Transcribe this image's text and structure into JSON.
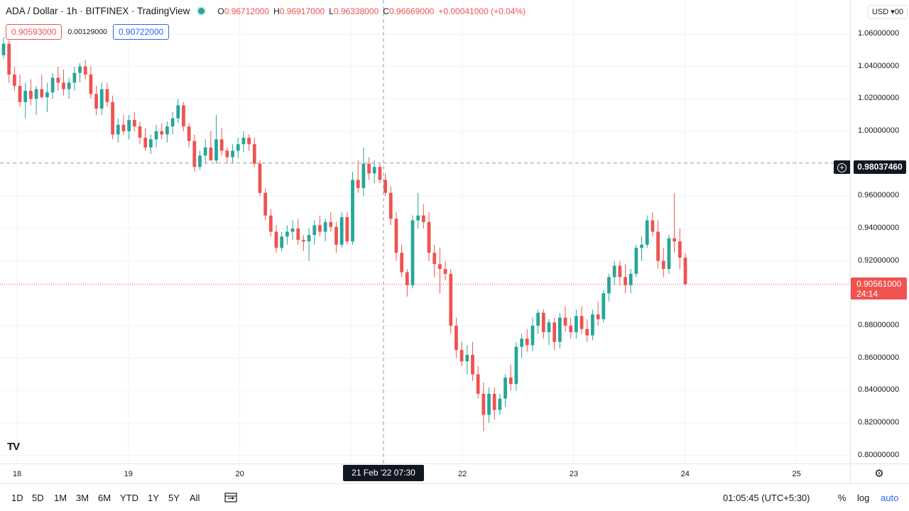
{
  "legend": {
    "symbol": "ADA / Dollar · 1h · BITFINEX · TradingView",
    "open_key": "O",
    "open": "0.96712000",
    "high_key": "H",
    "high": "0.96917000",
    "low_key": "L",
    "low": "0.96338000",
    "close_key": "C",
    "close": "0.96669000",
    "change": "+0.00041000 (+0.04%)"
  },
  "quote": {
    "bid": "0.90593000",
    "spread": "0.00129000",
    "ask": "0.90722000"
  },
  "currency": {
    "label": "USD ▾",
    "suffix": "00"
  },
  "price_axis": {
    "ticks": [
      "1.06000000",
      "1.04000000",
      "1.02000000",
      "1.00000000",
      "0.96000000",
      "0.94000000",
      "0.92000000",
      "0.88000000",
      "0.86000000",
      "0.84000000",
      "0.82000000",
      "0.80000000"
    ],
    "tick_values": [
      1.06,
      1.04,
      1.02,
      1.0,
      0.96,
      0.94,
      0.92,
      0.88,
      0.86,
      0.84,
      0.82,
      0.8
    ],
    "range": [
      0.795,
      1.081
    ]
  },
  "time_axis": {
    "ticks": [
      "18",
      "19",
      "20",
      "22",
      "23",
      "24",
      "25"
    ]
  },
  "crosshair": {
    "price": "0.98037460",
    "price_value": 0.9803746,
    "time": "21 Feb '22   07:30"
  },
  "last_price": {
    "price": "0.90561000",
    "price_value": 0.90561,
    "countdown": "24:14"
  },
  "bottom_bar": {
    "ranges": [
      "1D",
      "5D",
      "1M",
      "3M",
      "6M",
      "YTD",
      "1Y",
      "5Y",
      "All"
    ],
    "clock": "01:05:45 (UTC+5:30)",
    "percent": "%",
    "log": "log",
    "auto": "auto"
  },
  "logo": "TV",
  "colors": {
    "up": "#26a69a",
    "down": "#ef5350",
    "grid": "#f0f3fa",
    "crosshair": "#9598a1"
  },
  "chart_data": {
    "type": "candlestick",
    "interval": "1h",
    "series": [
      {
        "values": [
          [
            1.047,
            1.058,
            1.045,
            1.054
          ],
          [
            1.054,
            1.056,
            1.03,
            1.035
          ],
          [
            1.035,
            1.04,
            1.025,
            1.028
          ],
          [
            1.028,
            1.035,
            1.015,
            1.018
          ],
          [
            1.018,
            1.03,
            1.008,
            1.025
          ],
          [
            1.025,
            1.032,
            1.016,
            1.02
          ],
          [
            1.02,
            1.028,
            1.01,
            1.026
          ],
          [
            1.026,
            1.035,
            1.02,
            1.021
          ],
          [
            1.021,
            1.03,
            1.012,
            1.024
          ],
          [
            1.024,
            1.036,
            1.02,
            1.033
          ],
          [
            1.033,
            1.04,
            1.025,
            1.03
          ],
          [
            1.03,
            1.038,
            1.022,
            1.026
          ],
          [
            1.026,
            1.033,
            1.02,
            1.03
          ],
          [
            1.03,
            1.04,
            1.025,
            1.036
          ],
          [
            1.036,
            1.042,
            1.03,
            1.04
          ],
          [
            1.04,
            1.044,
            1.032,
            1.035
          ],
          [
            1.035,
            1.04,
            1.02,
            1.023
          ],
          [
            1.023,
            1.028,
            1.01,
            1.014
          ],
          [
            1.014,
            1.03,
            1.01,
            1.026
          ],
          [
            1.026,
            1.03,
            1.015,
            1.018
          ],
          [
            1.018,
            1.022,
            0.995,
            0.998
          ],
          [
            0.998,
            1.008,
            0.993,
            1.004
          ],
          [
            1.004,
            1.01,
            0.998,
            1.0
          ],
          [
            1.0,
            1.01,
            0.995,
            1.007
          ],
          [
            1.007,
            1.012,
            1.0,
            1.003
          ],
          [
            1.003,
            1.006,
            0.992,
            0.996
          ],
          [
            0.996,
            1.002,
            0.988,
            0.99
          ],
          [
            0.99,
            0.998,
            0.986,
            0.995
          ],
          [
            0.995,
            1.004,
            0.99,
            1.0
          ],
          [
            1.0,
            1.005,
            0.995,
            0.998
          ],
          [
            0.998,
            1.006,
            0.993,
            1.003
          ],
          [
            1.003,
            1.012,
            0.998,
            1.008
          ],
          [
            1.008,
            1.02,
            1.005,
            1.016
          ],
          [
            1.016,
            1.018,
            1.0,
            1.003
          ],
          [
            1.003,
            1.005,
            0.99,
            0.994
          ],
          [
            0.994,
            0.998,
            0.975,
            0.978
          ],
          [
            0.978,
            0.988,
            0.976,
            0.985
          ],
          [
            0.985,
            0.995,
            0.98,
            0.99
          ],
          [
            0.99,
            1.0,
            0.985,
            0.982
          ],
          [
            0.982,
            1.01,
            0.98,
            0.995
          ],
          [
            0.995,
            1.002,
            0.985,
            0.988
          ],
          [
            0.988,
            0.99,
            0.98,
            0.984
          ],
          [
            0.984,
            0.992,
            0.98,
            0.988
          ],
          [
            0.988,
            0.996,
            0.983,
            0.992
          ],
          [
            0.992,
            1.0,
            0.987,
            0.996
          ],
          [
            0.996,
            0.998,
            0.988,
            0.992
          ],
          [
            0.992,
            0.996,
            0.978,
            0.98
          ],
          [
            0.98,
            0.982,
            0.96,
            0.962
          ],
          [
            0.962,
            0.965,
            0.945,
            0.948
          ],
          [
            0.948,
            0.952,
            0.935,
            0.938
          ],
          [
            0.938,
            0.942,
            0.925,
            0.928
          ],
          [
            0.928,
            0.938,
            0.926,
            0.935
          ],
          [
            0.935,
            0.942,
            0.93,
            0.938
          ],
          [
            0.938,
            0.945,
            0.933,
            0.94
          ],
          [
            0.94,
            0.946,
            0.93,
            0.933
          ],
          [
            0.933,
            0.936,
            0.926,
            0.932
          ],
          [
            0.932,
            0.94,
            0.92,
            0.936
          ],
          [
            0.936,
            0.945,
            0.93,
            0.942
          ],
          [
            0.942,
            0.948,
            0.935,
            0.938
          ],
          [
            0.938,
            0.946,
            0.932,
            0.944
          ],
          [
            0.944,
            0.95,
            0.938,
            0.941
          ],
          [
            0.941,
            0.944,
            0.925,
            0.93
          ],
          [
            0.93,
            0.95,
            0.928,
            0.947
          ],
          [
            0.947,
            0.95,
            0.93,
            0.932
          ],
          [
            0.932,
            0.975,
            0.93,
            0.97
          ],
          [
            0.97,
            0.982,
            0.962,
            0.965
          ],
          [
            0.965,
            0.99,
            0.96,
            0.98
          ],
          [
            0.98,
            0.984,
            0.97,
            0.974
          ],
          [
            0.974,
            0.982,
            0.968,
            0.978
          ],
          [
            0.978,
            0.98,
            0.968,
            0.97
          ],
          [
            0.97,
            0.974,
            0.96,
            0.962
          ],
          [
            0.962,
            0.966,
            0.942,
            0.946
          ],
          [
            0.946,
            0.95,
            0.92,
            0.925
          ],
          [
            0.925,
            0.93,
            0.91,
            0.913
          ],
          [
            0.913,
            0.915,
            0.898,
            0.905
          ],
          [
            0.905,
            0.948,
            0.903,
            0.945
          ],
          [
            0.945,
            0.962,
            0.94,
            0.948
          ],
          [
            0.948,
            0.955,
            0.94,
            0.944
          ],
          [
            0.944,
            0.95,
            0.92,
            0.925
          ],
          [
            0.925,
            0.93,
            0.91,
            0.918
          ],
          [
            0.918,
            0.928,
            0.9,
            0.915
          ],
          [
            0.915,
            0.92,
            0.908,
            0.912
          ],
          [
            0.912,
            0.915,
            0.875,
            0.88
          ],
          [
            0.88,
            0.885,
            0.86,
            0.865
          ],
          [
            0.865,
            0.87,
            0.855,
            0.858
          ],
          [
            0.858,
            0.868,
            0.85,
            0.862
          ],
          [
            0.862,
            0.87,
            0.846,
            0.85
          ],
          [
            0.85,
            0.855,
            0.835,
            0.838
          ],
          [
            0.838,
            0.845,
            0.815,
            0.825
          ],
          [
            0.825,
            0.842,
            0.82,
            0.838
          ],
          [
            0.838,
            0.842,
            0.822,
            0.828
          ],
          [
            0.828,
            0.838,
            0.825,
            0.835
          ],
          [
            0.835,
            0.85,
            0.83,
            0.848
          ],
          [
            0.848,
            0.856,
            0.84,
            0.844
          ],
          [
            0.844,
            0.87,
            0.84,
            0.867
          ],
          [
            0.867,
            0.875,
            0.86,
            0.872
          ],
          [
            0.872,
            0.878,
            0.864,
            0.868
          ],
          [
            0.868,
            0.885,
            0.864,
            0.88
          ],
          [
            0.88,
            0.89,
            0.875,
            0.888
          ],
          [
            0.888,
            0.89,
            0.872,
            0.876
          ],
          [
            0.876,
            0.884,
            0.868,
            0.882
          ],
          [
            0.882,
            0.885,
            0.865,
            0.87
          ],
          [
            0.87,
            0.888,
            0.866,
            0.885
          ],
          [
            0.885,
            0.892,
            0.876,
            0.88
          ],
          [
            0.88,
            0.885,
            0.872,
            0.876
          ],
          [
            0.876,
            0.89,
            0.872,
            0.886
          ],
          [
            0.886,
            0.892,
            0.875,
            0.878
          ],
          [
            0.878,
            0.884,
            0.87,
            0.874
          ],
          [
            0.874,
            0.89,
            0.871,
            0.887
          ],
          [
            0.887,
            0.895,
            0.88,
            0.884
          ],
          [
            0.884,
            0.902,
            0.882,
            0.9
          ],
          [
            0.9,
            0.912,
            0.895,
            0.91
          ],
          [
            0.91,
            0.92,
            0.905,
            0.917
          ],
          [
            0.917,
            0.92,
            0.905,
            0.91
          ],
          [
            0.91,
            0.918,
            0.9,
            0.905
          ],
          [
            0.905,
            0.915,
            0.9,
            0.912
          ],
          [
            0.912,
            0.93,
            0.91,
            0.928
          ],
          [
            0.928,
            0.935,
            0.92,
            0.93
          ],
          [
            0.93,
            0.948,
            0.928,
            0.945
          ],
          [
            0.945,
            0.95,
            0.935,
            0.938
          ],
          [
            0.938,
            0.945,
            0.915,
            0.92
          ],
          [
            0.92,
            0.928,
            0.91,
            0.915
          ],
          [
            0.915,
            0.936,
            0.912,
            0.934
          ],
          [
            0.934,
            0.962,
            0.925,
            0.932
          ],
          [
            0.932,
            0.94,
            0.915,
            0.922
          ],
          [
            0.922,
            0.925,
            0.905,
            0.9056
          ]
        ]
      }
    ],
    "x_labels": [
      "18",
      "19",
      "20",
      "21",
      "22",
      "23",
      "24",
      "25"
    ],
    "ylim": [
      0.795,
      1.081
    ],
    "grid": true
  }
}
